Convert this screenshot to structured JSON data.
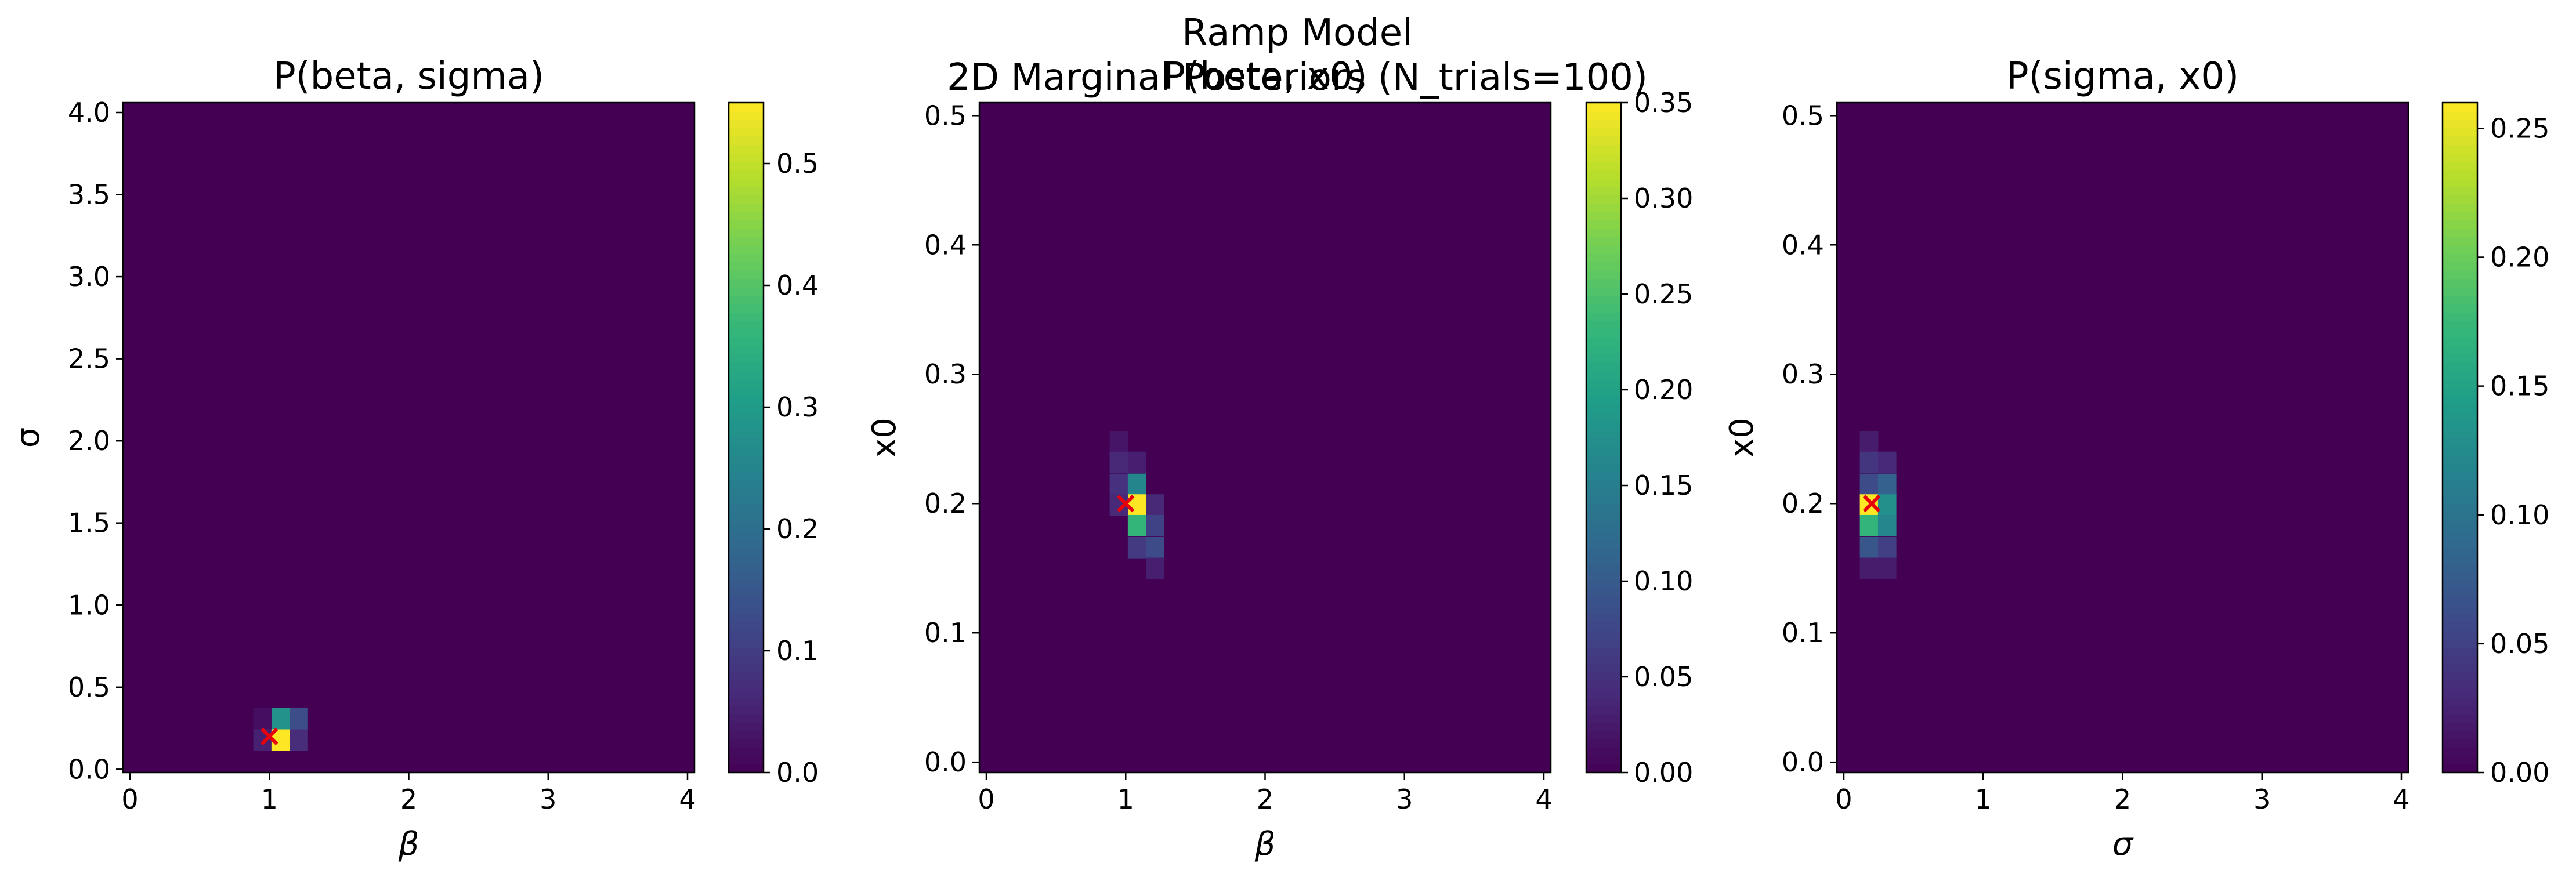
{
  "figure": {
    "suptitle_line1": "Ramp Model",
    "suptitle_line2": "2D Marginal Posteriors (N_trials=100)"
  },
  "colormap": [
    "#440154",
    "#482878",
    "#3e4989",
    "#31688e",
    "#26828e",
    "#1f9e89",
    "#35b779",
    "#6ece58",
    "#b5de2b",
    "#fde725"
  ],
  "true_marker_color": "#e8000b",
  "chart_data": [
    {
      "type": "heatmap",
      "title": "P(beta, sigma)",
      "xlabel": "β",
      "ylabel": "σ",
      "xlim": [
        -0.05,
        4.05
      ],
      "ylim": [
        -0.02,
        4.06
      ],
      "xticks": [
        0,
        1,
        2,
        3,
        4
      ],
      "yticks": [
        0.0,
        0.5,
        1.0,
        1.5,
        2.0,
        2.5,
        3.0,
        3.5,
        4.0
      ],
      "ytick_labels": [
        "0.0",
        "0.5",
        "1.0",
        "1.5",
        "2.0",
        "2.5",
        "3.0",
        "3.5",
        "4.0"
      ],
      "cell_dx": 0.13,
      "cell_dy": 0.13,
      "cells": [
        {
          "x": 0.95,
          "y": 0.18,
          "v": 0.05
        },
        {
          "x": 1.08,
          "y": 0.18,
          "v": 0.55
        },
        {
          "x": 1.21,
          "y": 0.18,
          "v": 0.07
        },
        {
          "x": 1.08,
          "y": 0.31,
          "v": 0.28
        },
        {
          "x": 1.21,
          "y": 0.31,
          "v": 0.13
        },
        {
          "x": 0.95,
          "y": 0.31,
          "v": 0.02
        }
      ],
      "true_point": {
        "x": 1.0,
        "y": 0.2
      },
      "colorbar": {
        "min": 0.0,
        "max": 0.55,
        "ticks": [
          0.0,
          0.1,
          0.2,
          0.3,
          0.4,
          0.5
        ],
        "tick_labels": [
          "0.0",
          "0.1",
          "0.2",
          "0.3",
          "0.4",
          "0.5"
        ]
      }
    },
    {
      "type": "heatmap",
      "title": "P(beta, x0)",
      "xlabel": "β",
      "ylabel": "x0",
      "xlim": [
        -0.05,
        4.05
      ],
      "ylim": [
        -0.008,
        0.51
      ],
      "xticks": [
        0,
        1,
        2,
        3,
        4
      ],
      "yticks": [
        0.0,
        0.1,
        0.2,
        0.3,
        0.4,
        0.5
      ],
      "ytick_labels": [
        "0.0",
        "0.1",
        "0.2",
        "0.3",
        "0.4",
        "0.5"
      ],
      "cell_dx": 0.13,
      "cell_dy": 0.0163,
      "cells": [
        {
          "x": 0.95,
          "y": 0.248,
          "v": 0.02
        },
        {
          "x": 0.95,
          "y": 0.232,
          "v": 0.04
        },
        {
          "x": 1.08,
          "y": 0.232,
          "v": 0.03
        },
        {
          "x": 0.95,
          "y": 0.215,
          "v": 0.05
        },
        {
          "x": 1.08,
          "y": 0.215,
          "v": 0.16
        },
        {
          "x": 1.08,
          "y": 0.199,
          "v": 0.35
        },
        {
          "x": 0.95,
          "y": 0.199,
          "v": 0.04
        },
        {
          "x": 1.21,
          "y": 0.199,
          "v": 0.04
        },
        {
          "x": 1.08,
          "y": 0.183,
          "v": 0.23
        },
        {
          "x": 1.21,
          "y": 0.183,
          "v": 0.07
        },
        {
          "x": 1.08,
          "y": 0.166,
          "v": 0.06
        },
        {
          "x": 1.21,
          "y": 0.166,
          "v": 0.08
        },
        {
          "x": 1.21,
          "y": 0.15,
          "v": 0.03
        }
      ],
      "true_point": {
        "x": 1.0,
        "y": 0.2
      },
      "colorbar": {
        "min": 0.0,
        "max": 0.35,
        "ticks": [
          0.0,
          0.05,
          0.1,
          0.15,
          0.2,
          0.25,
          0.3,
          0.35
        ],
        "tick_labels": [
          "0.00",
          "0.05",
          "0.10",
          "0.15",
          "0.20",
          "0.25",
          "0.30",
          "0.35"
        ]
      }
    },
    {
      "type": "heatmap",
      "title": "P(sigma, x0)",
      "xlabel": "σ",
      "ylabel": "x0",
      "xlim": [
        -0.05,
        4.05
      ],
      "ylim": [
        -0.008,
        0.51
      ],
      "xticks": [
        0,
        1,
        2,
        3,
        4
      ],
      "yticks": [
        0.0,
        0.1,
        0.2,
        0.3,
        0.4,
        0.5
      ],
      "ytick_labels": [
        "0.0",
        "0.1",
        "0.2",
        "0.3",
        "0.4",
        "0.5"
      ],
      "cell_dx": 0.13,
      "cell_dy": 0.0163,
      "cells": [
        {
          "x": 0.18,
          "y": 0.248,
          "v": 0.02
        },
        {
          "x": 0.18,
          "y": 0.232,
          "v": 0.04
        },
        {
          "x": 0.31,
          "y": 0.232,
          "v": 0.03
        },
        {
          "x": 0.18,
          "y": 0.215,
          "v": 0.06
        },
        {
          "x": 0.31,
          "y": 0.215,
          "v": 0.08
        },
        {
          "x": 0.18,
          "y": 0.199,
          "v": 0.26
        },
        {
          "x": 0.31,
          "y": 0.199,
          "v": 0.13
        },
        {
          "x": 0.18,
          "y": 0.183,
          "v": 0.17
        },
        {
          "x": 0.31,
          "y": 0.183,
          "v": 0.12
        },
        {
          "x": 0.18,
          "y": 0.166,
          "v": 0.07
        },
        {
          "x": 0.31,
          "y": 0.166,
          "v": 0.05
        },
        {
          "x": 0.18,
          "y": 0.15,
          "v": 0.02
        },
        {
          "x": 0.31,
          "y": 0.15,
          "v": 0.02
        }
      ],
      "true_point": {
        "x": 0.2,
        "y": 0.2
      },
      "colorbar": {
        "min": 0.0,
        "max": 0.26,
        "ticks": [
          0.0,
          0.05,
          0.1,
          0.15,
          0.2,
          0.25
        ],
        "tick_labels": [
          "0.00",
          "0.05",
          "0.10",
          "0.15",
          "0.20",
          "0.25"
        ]
      }
    }
  ]
}
